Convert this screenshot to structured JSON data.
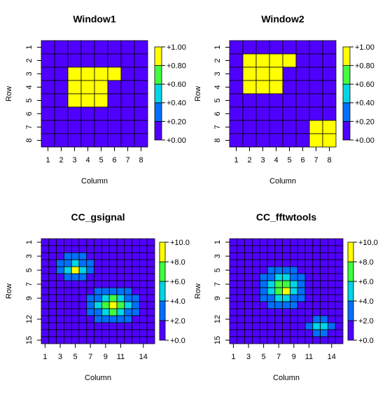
{
  "palette": [
    "#5000ff",
    "#0070ff",
    "#00d6e6",
    "#40ff40",
    "#ffff00"
  ],
  "chart_data": [
    {
      "type": "heatmap",
      "title": "Window1",
      "xlabel": "Column",
      "ylabel": "Row",
      "nrows": 8,
      "ncols": 8,
      "xticks": [
        "1",
        "2",
        "3",
        "4",
        "5",
        "6",
        "7",
        "8"
      ],
      "yticks": [
        "1",
        "2",
        "3",
        "4",
        "5",
        "6",
        "7",
        "8"
      ],
      "zlim": [
        0,
        1
      ],
      "legend_ticks": [
        "+0.00",
        "+0.20",
        "+0.40",
        "+0.60",
        "+0.80",
        "+1.00"
      ],
      "values": [
        [
          0,
          0,
          0,
          0,
          0,
          0,
          0,
          0
        ],
        [
          0,
          0,
          0,
          0,
          0,
          0,
          0,
          0
        ],
        [
          0,
          0,
          1,
          1,
          1,
          1,
          0,
          0
        ],
        [
          0,
          0,
          1,
          1,
          1,
          0,
          0,
          0
        ],
        [
          0,
          0,
          1,
          1,
          1,
          0,
          0,
          0
        ],
        [
          0,
          0,
          0,
          0,
          0,
          0,
          0,
          0
        ],
        [
          0,
          0,
          0,
          0,
          0,
          0,
          0,
          0
        ],
        [
          0,
          0,
          0,
          0,
          0,
          0,
          0,
          0
        ]
      ]
    },
    {
      "type": "heatmap",
      "title": "Window2",
      "xlabel": "Column",
      "ylabel": "Row",
      "nrows": 8,
      "ncols": 8,
      "xticks": [
        "1",
        "2",
        "3",
        "4",
        "5",
        "6",
        "7",
        "8"
      ],
      "yticks": [
        "1",
        "2",
        "3",
        "4",
        "5",
        "6",
        "7",
        "8"
      ],
      "zlim": [
        0,
        1
      ],
      "legend_ticks": [
        "+0.00",
        "+0.20",
        "+0.40",
        "+0.60",
        "+0.80",
        "+1.00"
      ],
      "values": [
        [
          0,
          0,
          0,
          0,
          0,
          0,
          0,
          0
        ],
        [
          0,
          1,
          1,
          1,
          1,
          0,
          0,
          0
        ],
        [
          0,
          1,
          1,
          1,
          0,
          0,
          0,
          0
        ],
        [
          0,
          1,
          1,
          1,
          0,
          0,
          0,
          0
        ],
        [
          0,
          0,
          0,
          0,
          0,
          0,
          0,
          0
        ],
        [
          0,
          0,
          0,
          0,
          0,
          0,
          0,
          0
        ],
        [
          0,
          0,
          0,
          0,
          0,
          0,
          1,
          1
        ],
        [
          0,
          0,
          0,
          0,
          0,
          0,
          1,
          1
        ]
      ]
    },
    {
      "type": "heatmap",
      "title": "CC_gsignal",
      "xlabel": "Column",
      "ylabel": "Row",
      "nrows": 15,
      "ncols": 15,
      "xticks": [
        "1",
        "3",
        "5",
        "7",
        "9",
        "11",
        "14"
      ],
      "yticks": [
        "1",
        "3",
        "5",
        "7",
        "9",
        "12",
        "15"
      ],
      "zlim": [
        0,
        10
      ],
      "legend_ticks": [
        "+0.0",
        "+2.0",
        "+4.0",
        "+6.0",
        "+8.0",
        "+10.0"
      ],
      "values": [
        [
          0,
          0,
          0,
          0,
          0,
          0,
          0,
          0,
          0,
          0,
          0,
          0,
          0,
          0,
          0
        ],
        [
          0,
          0,
          0,
          0,
          0,
          0,
          0,
          0,
          0,
          0,
          0,
          0,
          0,
          0,
          0
        ],
        [
          0,
          0,
          0,
          2.5,
          2.5,
          2.5,
          0,
          0,
          0,
          0,
          0,
          0,
          0,
          0,
          0
        ],
        [
          0,
          0,
          2.5,
          2.5,
          5,
          2.5,
          2.5,
          0,
          0,
          0,
          0,
          0,
          0,
          0,
          0
        ],
        [
          0,
          0,
          2.5,
          5,
          10,
          5,
          2.5,
          0,
          0,
          0,
          0,
          0,
          0,
          0,
          0
        ],
        [
          0,
          0,
          0,
          2.5,
          2.5,
          2.5,
          0,
          0,
          0,
          0,
          0,
          0,
          0,
          0,
          0
        ],
        [
          0,
          0,
          0,
          0,
          0,
          0,
          0,
          0,
          0,
          0,
          0,
          0,
          0,
          0,
          0
        ],
        [
          0,
          0,
          0,
          0,
          0,
          0,
          0,
          2.5,
          2.5,
          2.5,
          2.5,
          2.5,
          0,
          0,
          0
        ],
        [
          0,
          0,
          0,
          0,
          0,
          0,
          2.5,
          2.5,
          5,
          7,
          5,
          2.5,
          2.5,
          0,
          0
        ],
        [
          0,
          0,
          0,
          0,
          0,
          0,
          2.5,
          5,
          7,
          10,
          7,
          5,
          2.5,
          0,
          0
        ],
        [
          0,
          0,
          0,
          0,
          0,
          0,
          2.5,
          2.5,
          5,
          7,
          5,
          2.5,
          2.5,
          0,
          0
        ],
        [
          0,
          0,
          0,
          0,
          0,
          0,
          0,
          2.5,
          2.5,
          2.5,
          2.5,
          2.5,
          0,
          0,
          0
        ],
        [
          0,
          0,
          0,
          0,
          0,
          0,
          0,
          0,
          0,
          0,
          0,
          0,
          0,
          0,
          0
        ],
        [
          0,
          0,
          0,
          0,
          0,
          0,
          0,
          0,
          0,
          0,
          0,
          0,
          0,
          0,
          0
        ],
        [
          0,
          0,
          0,
          0,
          0,
          0,
          0,
          0,
          0,
          0,
          0,
          0,
          0,
          0,
          0
        ]
      ]
    },
    {
      "type": "heatmap",
      "title": "CC_fftwtools",
      "xlabel": "Column",
      "ylabel": "Row",
      "nrows": 15,
      "ncols": 15,
      "xticks": [
        "1",
        "3",
        "5",
        "7",
        "9",
        "11",
        "14"
      ],
      "yticks": [
        "1",
        "3",
        "5",
        "7",
        "9",
        "12",
        "15"
      ],
      "zlim": [
        0,
        10
      ],
      "legend_ticks": [
        "+0.0",
        "+2.0",
        "+4.0",
        "+6.0",
        "+8.0",
        "+10.0"
      ],
      "values": [
        [
          0,
          0,
          0,
          0,
          0,
          0,
          0,
          0,
          0,
          0,
          0,
          0,
          0,
          0,
          0
        ],
        [
          0,
          0,
          0,
          0,
          0,
          0,
          0,
          0,
          0,
          0,
          0,
          0,
          0,
          0,
          0
        ],
        [
          0,
          0,
          0,
          0,
          0,
          0,
          0,
          0,
          0,
          0,
          0,
          0,
          0,
          0,
          0
        ],
        [
          0,
          0,
          0,
          0,
          0,
          0,
          0,
          0,
          0,
          0,
          0,
          0,
          0,
          0,
          0
        ],
        [
          0,
          0,
          0,
          0,
          0,
          2.5,
          2.5,
          2.5,
          2.5,
          0,
          0,
          0,
          0,
          0,
          0
        ],
        [
          0,
          0,
          0,
          0,
          2.5,
          2.5,
          5,
          5,
          2.5,
          2.5,
          0,
          0,
          0,
          0,
          0
        ],
        [
          0,
          0,
          0,
          0,
          2.5,
          5,
          7,
          7,
          5,
          2.5,
          0,
          0,
          0,
          0,
          0
        ],
        [
          0,
          0,
          0,
          0,
          2.5,
          5,
          7,
          10,
          5,
          2.5,
          0,
          0,
          0,
          0,
          0
        ],
        [
          0,
          0,
          0,
          0,
          2.5,
          2.5,
          5,
          5,
          2.5,
          2.5,
          0,
          0,
          0,
          0,
          0
        ],
        [
          0,
          0,
          0,
          0,
          0,
          2.5,
          2.5,
          2.5,
          2.5,
          0,
          0,
          0,
          0,
          0,
          0
        ],
        [
          0,
          0,
          0,
          0,
          0,
          0,
          0,
          0,
          0,
          0,
          0,
          0,
          0,
          0,
          0
        ],
        [
          0,
          0,
          0,
          0,
          0,
          0,
          0,
          0,
          0,
          0,
          0,
          2.5,
          2.5,
          0,
          0
        ],
        [
          0,
          0,
          0,
          0,
          0,
          0,
          0,
          0,
          0,
          0,
          2.5,
          5,
          5,
          2.5,
          0
        ],
        [
          0,
          0,
          0,
          0,
          0,
          0,
          0,
          0,
          0,
          0,
          0,
          2.5,
          2.5,
          0,
          0
        ],
        [
          0,
          0,
          0,
          0,
          0,
          0,
          0,
          0,
          0,
          0,
          0,
          0,
          0,
          0,
          0
        ]
      ]
    }
  ]
}
